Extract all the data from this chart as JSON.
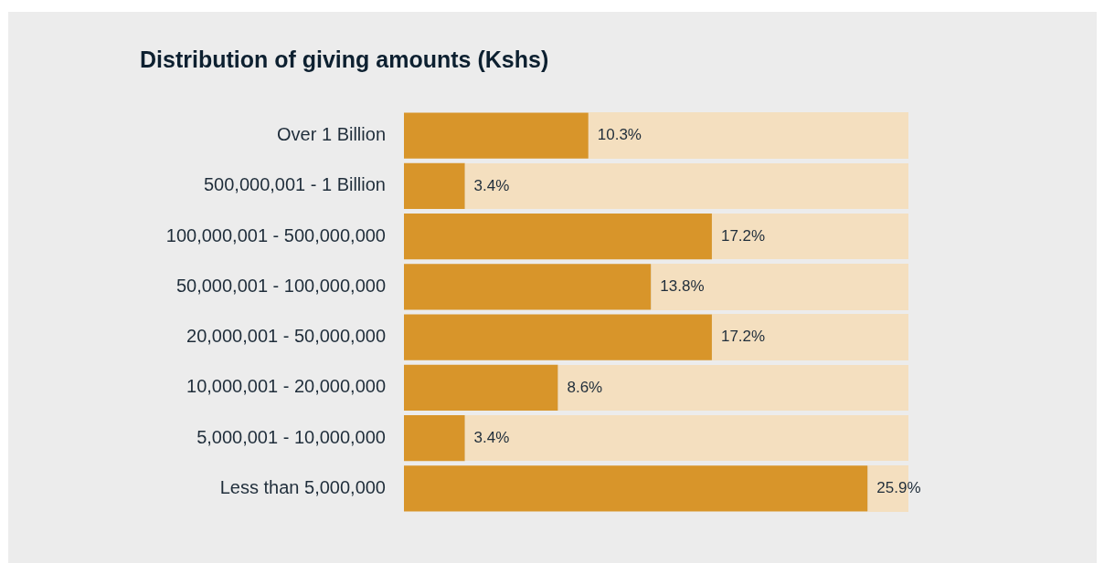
{
  "chart_data": {
    "type": "bar",
    "orientation": "horizontal",
    "title": "Distribution of giving amounts (Kshs)",
    "categories": [
      "Over 1 Billion",
      "500,000,001 - 1 Billion",
      "100,000,001 - 500,000,000",
      "50,000,001 - 100,000,000",
      "20,000,001 - 50,000,000",
      "10,000,001 - 20,000,000",
      "5,000,001 - 10,000,000",
      "Less than 5,000,000"
    ],
    "values": [
      10.3,
      3.4,
      17.2,
      13.8,
      17.2,
      8.6,
      3.4,
      25.9
    ],
    "value_labels": [
      "10.3%",
      "3.4%",
      "17.2%",
      "13.8%",
      "17.2%",
      "8.6%",
      "3.4%",
      "25.9%"
    ],
    "color": "#d8952a",
    "tick_labels": "y",
    "legend": false
  }
}
